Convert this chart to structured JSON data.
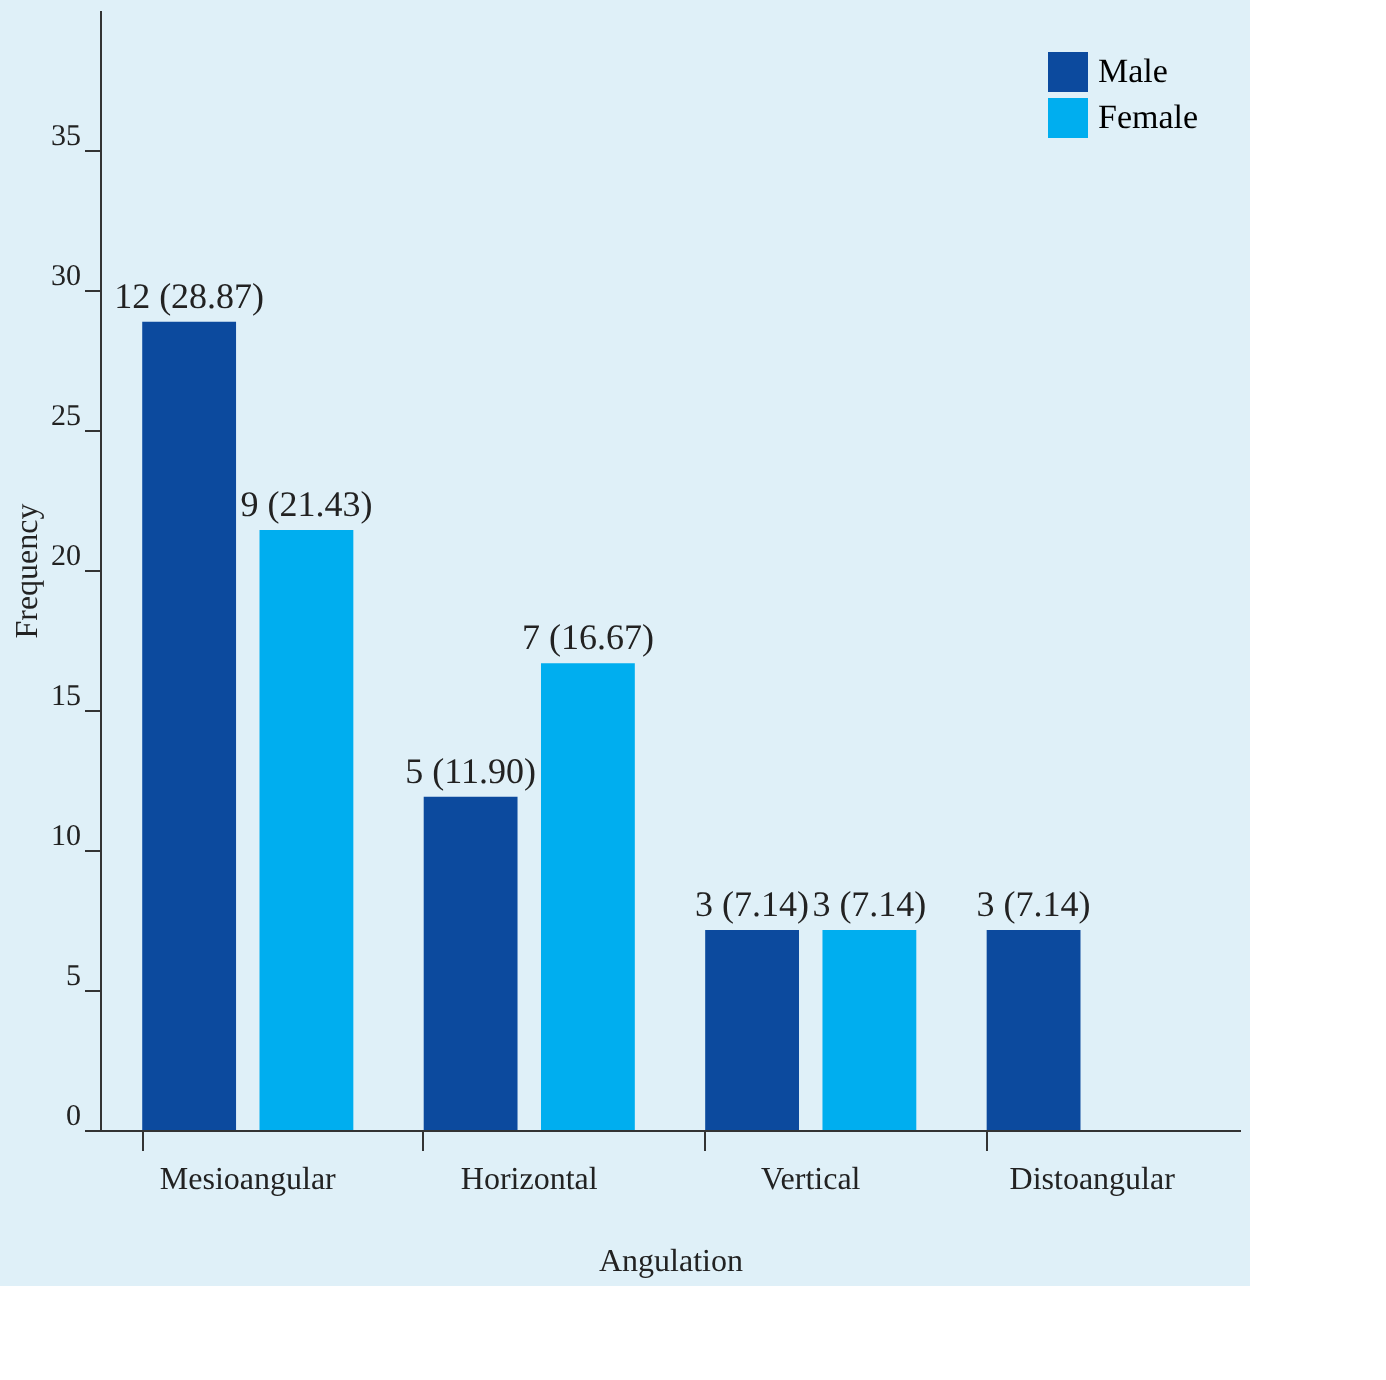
{
  "chart_data": {
    "type": "bar",
    "xlabel": "Angulation",
    "ylabel": "Frequency",
    "categories": [
      "Mesioangular",
      "Horizontal",
      "Vertical",
      "Distoangular"
    ],
    "series": [
      {
        "name": "Male",
        "color": "#0c4a9e",
        "values": [
          28.87,
          11.9,
          7.14,
          7.14
        ],
        "value_labels": [
          "12 (28.87)",
          "5 (11.90)",
          "3 (7.14)",
          "3 (7.14)"
        ]
      },
      {
        "name": "Female",
        "color": "#00aeef",
        "values": [
          21.43,
          16.67,
          7.14,
          null
        ],
        "value_labels": [
          "9 (21.43)",
          "7 (16.67)",
          "3 (7.14)",
          null
        ]
      }
    ],
    "ylim": [
      0,
      40
    ],
    "yticks": [
      0,
      5,
      10,
      15,
      20,
      25,
      30,
      35
    ],
    "grid": false,
    "legend": "top right"
  }
}
